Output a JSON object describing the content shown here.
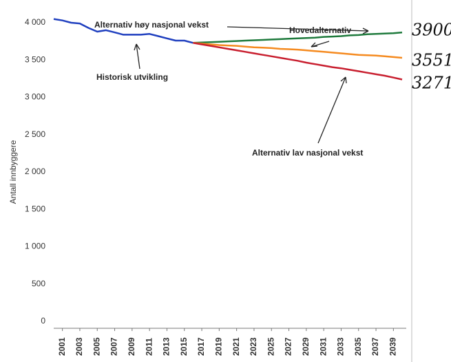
{
  "chart_data": {
    "type": "line",
    "y_label": "Antall innbyggere",
    "x": [
      2000,
      2001,
      2002,
      2003,
      2004,
      2005,
      2006,
      2007,
      2008,
      2009,
      2010,
      2011,
      2012,
      2013,
      2014,
      2015,
      2016,
      2017,
      2018,
      2019,
      2020,
      2021,
      2022,
      2023,
      2024,
      2025,
      2026,
      2027,
      2028,
      2029,
      2030,
      2031,
      2032,
      2033,
      2034,
      2035,
      2036,
      2037,
      2038,
      2039,
      2040
    ],
    "xlim": [
      2000,
      2040
    ],
    "xticks": [
      2001,
      2003,
      2005,
      2007,
      2009,
      2011,
      2013,
      2015,
      2017,
      2019,
      2021,
      2023,
      2025,
      2027,
      2029,
      2031,
      2033,
      2035,
      2037,
      2039
    ],
    "ylim": [
      0,
      4000
    ],
    "yticks": [
      0,
      500,
      {
        "value": 1000,
        "label": "1 000"
      },
      {
        "value": 1500,
        "label": "1 500"
      },
      {
        "value": 2000,
        "label": "2 000"
      },
      {
        "value": 2500,
        "label": "2 500"
      },
      {
        "value": 3000,
        "label": "3 000"
      },
      {
        "value": 3500,
        "label": "3 500"
      },
      {
        "value": 4000,
        "label": "4 000"
      }
    ],
    "grid": false,
    "series": [
      {
        "name": "Historisk utvikling",
        "color": "#1f3fbf",
        "values": [
          4050,
          4030,
          4000,
          3990,
          3930,
          3880,
          3900,
          3870,
          3840,
          3840,
          3840,
          3850,
          3820,
          3790,
          3760,
          3760,
          3730,
          null,
          null,
          null,
          null,
          null,
          null,
          null,
          null,
          null,
          null,
          null,
          null,
          null,
          null,
          null,
          null,
          null,
          null,
          null,
          null,
          null,
          null,
          null,
          null
        ]
      },
      {
        "name": "Alternativ høy nasjonal vekst",
        "color": "#1e7a3c",
        "values": [
          null,
          null,
          null,
          null,
          null,
          null,
          null,
          null,
          null,
          null,
          null,
          null,
          null,
          null,
          null,
          null,
          3730,
          3735,
          3740,
          3745,
          3750,
          3755,
          3760,
          3765,
          3770,
          3775,
          3780,
          3785,
          3790,
          3795,
          3800,
          3810,
          3815,
          3820,
          3830,
          3835,
          3845,
          3850,
          3855,
          3860,
          3870
        ]
      },
      {
        "name": "Hovedalternativ",
        "color": "#f58a1f",
        "values": [
          null,
          null,
          null,
          null,
          null,
          null,
          null,
          null,
          null,
          null,
          null,
          null,
          null,
          null,
          null,
          null,
          3730,
          3720,
          3710,
          3700,
          3695,
          3690,
          3680,
          3670,
          3665,
          3660,
          3650,
          3645,
          3640,
          3630,
          3620,
          3610,
          3600,
          3590,
          3580,
          3570,
          3565,
          3560,
          3550,
          3540,
          3530
        ]
      },
      {
        "name": "Alternativ lav nasjonal vekst",
        "color": "#c81e2e",
        "values": [
          null,
          null,
          null,
          null,
          null,
          null,
          null,
          null,
          null,
          null,
          null,
          null,
          null,
          null,
          null,
          null,
          3730,
          3710,
          3690,
          3670,
          3650,
          3630,
          3610,
          3590,
          3570,
          3550,
          3530,
          3510,
          3490,
          3465,
          3445,
          3425,
          3405,
          3390,
          3370,
          3350,
          3330,
          3310,
          3290,
          3265,
          3240
        ]
      }
    ],
    "handwritten": [
      "3900",
      "3551",
      "3271"
    ]
  }
}
